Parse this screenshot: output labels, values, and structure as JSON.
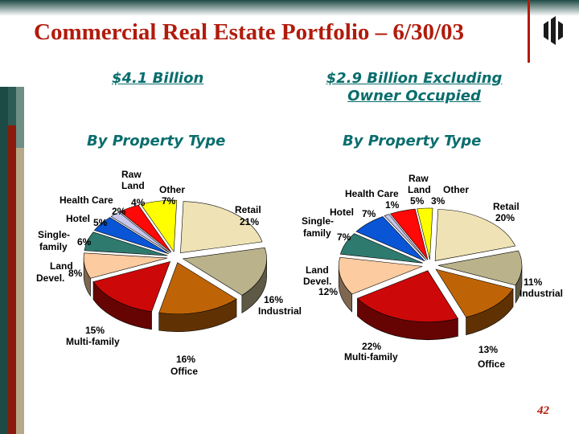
{
  "title": "Commercial Real Estate Portfolio – 6/30/03",
  "page_number": "42",
  "chart_data": [
    {
      "type": "pie",
      "title": "$4.1 Billion",
      "subtitle": "By Property Type",
      "categories": [
        "Retail",
        "Industrial",
        "Office",
        "Multi-family",
        "Land Devel.",
        "Single-family",
        "Hotel",
        "Health Care",
        "Raw Land",
        "Other"
      ],
      "values": [
        21,
        16,
        16,
        15,
        8,
        6,
        5,
        2,
        4,
        7
      ],
      "value_labels": [
        "21%",
        "16%",
        "16%",
        "15%",
        "8%",
        "6%",
        "5%",
        "2%",
        "4%",
        "7%"
      ],
      "colors": [
        "#efe3b6",
        "#bab28a",
        "#bf6406",
        "#cc0808",
        "#fccba0",
        "#2f7a6f",
        "#0955d6",
        "#c7c7ee",
        "#ff0808",
        "#ffff00"
      ]
    },
    {
      "type": "pie",
      "title": "$2.9 Billion Excluding Owner Occupied",
      "subtitle": "By Property Type",
      "categories": [
        "Retail",
        "Industrial",
        "Office",
        "Multi-family",
        "Land Devel.",
        "Single-family",
        "Hotel",
        "Health Care",
        "Raw Land",
        "Other"
      ],
      "values": [
        20,
        11,
        13,
        22,
        12,
        7,
        7,
        1,
        5,
        3
      ],
      "value_labels": [
        "20%",
        "11%",
        "13%",
        "22%",
        "12%",
        "7%",
        "7%",
        "1%",
        "5%",
        "3%"
      ],
      "colors": [
        "#efe3b6",
        "#bab28a",
        "#bf6406",
        "#cc0808",
        "#fccba0",
        "#2f7a6f",
        "#0955d6",
        "#c7c7ee",
        "#ff0808",
        "#ffff00"
      ]
    }
  ],
  "left_labels": {
    "retail": {
      "cat": "Retail",
      "pct": "21%"
    },
    "industrial": {
      "pct": "16%",
      "cat": "Industrial"
    },
    "office": {
      "pct": "16%",
      "cat": "Office"
    },
    "multifamily": {
      "pct": "15%",
      "cat": "Multi-family"
    },
    "land": {
      "cat1": "Land",
      "cat2": "Devel.",
      "pct": "8%"
    },
    "single": {
      "cat1": "Single-",
      "cat2": "family",
      "pct": "6%"
    },
    "hotel": {
      "cat": "Hotel",
      "pct": "5%"
    },
    "health": {
      "cat": "Health Care",
      "pct": "2%"
    },
    "raw": {
      "cat1": "Raw",
      "cat2": "Land",
      "pct": "4%"
    },
    "other": {
      "cat": "Other",
      "pct": "7%"
    }
  },
  "right_labels": {
    "retail": {
      "cat": "Retail",
      "pct": "20%"
    },
    "industrial": {
      "pct": "11%",
      "cat": "Industrial"
    },
    "office": {
      "pct": "13%",
      "cat": "Office"
    },
    "multifamily": {
      "pct": "22%",
      "cat": "Multi-family"
    },
    "land": {
      "cat1": "Land",
      "cat2": "Devel.",
      "pct": "12%"
    },
    "single": {
      "cat1": "Single-",
      "cat2": "family",
      "pct": "7%"
    },
    "hotel": {
      "cat": "Hotel",
      "pct": "7%"
    },
    "health": {
      "cat": "Health Care",
      "pct": "1%"
    },
    "raw": {
      "cat1": "Raw",
      "cat2": "Land",
      "pct": "5%"
    },
    "other": {
      "cat": "Other",
      "pct": "3%"
    }
  }
}
